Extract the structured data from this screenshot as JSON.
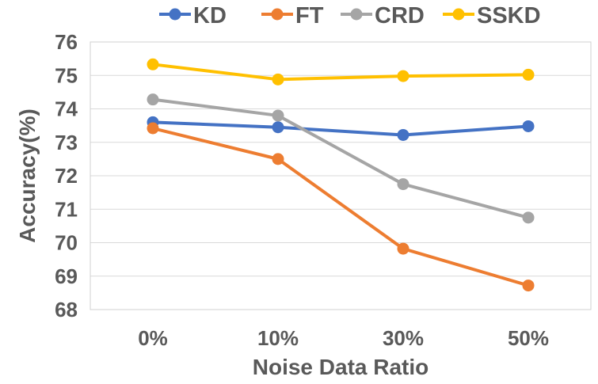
{
  "chart_data": {
    "type": "line",
    "title": "",
    "xlabel": "Noise Data Ratio",
    "ylabel": "Accuracy(%)",
    "categories": [
      "0%",
      "10%",
      "30%",
      "50%"
    ],
    "ylim": [
      68,
      76
    ],
    "yticks": [
      "68",
      "69",
      "70",
      "71",
      "72",
      "73",
      "74",
      "75",
      "76"
    ],
    "grid": true,
    "legend_position": "top",
    "series": [
      {
        "name": "KD",
        "color": "#4472C4",
        "values": [
          73.6,
          73.45,
          73.22,
          73.48
        ]
      },
      {
        "name": "FT",
        "color": "#ED7D31",
        "values": [
          73.42,
          72.5,
          69.82,
          68.72
        ]
      },
      {
        "name": "CRD",
        "color": "#A5A5A5",
        "values": [
          74.28,
          73.8,
          71.75,
          70.75
        ]
      },
      {
        "name": "SSKD",
        "color": "#FFC000",
        "values": [
          75.33,
          74.88,
          74.98,
          75.02
        ]
      }
    ]
  }
}
